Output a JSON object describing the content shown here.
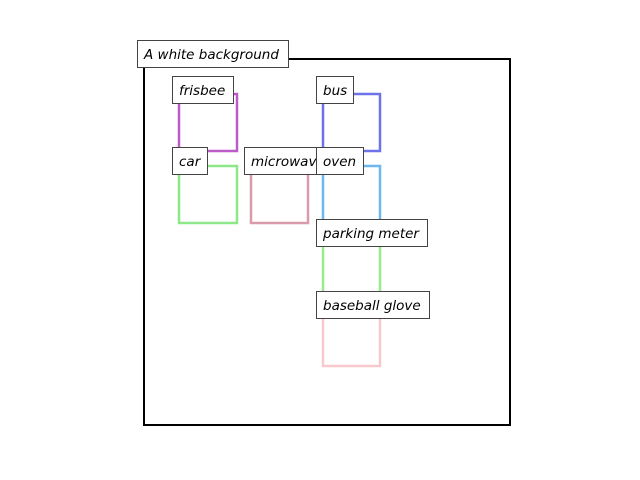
{
  "diagram": {
    "caption": "A white background",
    "objects": [
      {
        "id": "frisbee",
        "label": "frisbee",
        "color": "#bb5cc8"
      },
      {
        "id": "bus",
        "label": "bus",
        "color": "#6e72e8"
      },
      {
        "id": "car",
        "label": "car",
        "color": "#8ee88a"
      },
      {
        "id": "microwave",
        "label": "microwave",
        "color": "#d99aac"
      },
      {
        "id": "oven",
        "label": "oven",
        "color": "#6cb8ee"
      },
      {
        "id": "parking-meter",
        "label": "parking meter",
        "color": "#9aea8e"
      },
      {
        "id": "baseball-glove",
        "label": "baseball glove",
        "color": "#f7c8cc"
      }
    ]
  }
}
